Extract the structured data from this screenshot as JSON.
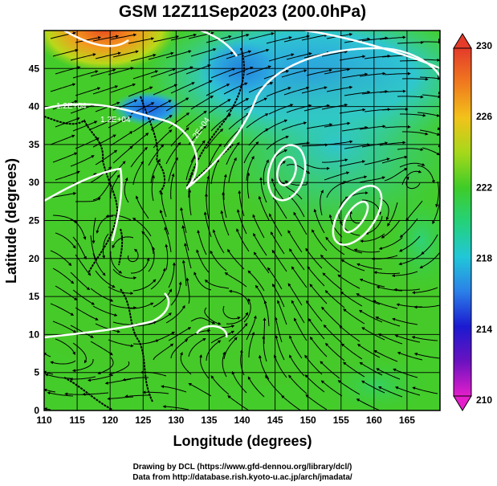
{
  "title": "GSM 12Z11Sep2023 (200.0hPa)",
  "xlabel": "Longitude (degrees)",
  "ylabel": "Latitude  (degrees)",
  "x_ticks": [
    "110",
    "115",
    "120",
    "125",
    "130",
    "135",
    "140",
    "145",
    "150",
    "155",
    "160",
    "165"
  ],
  "y_ticks": [
    "0",
    "5",
    "10",
    "15",
    "20",
    "25",
    "30",
    "35",
    "40",
    "45"
  ],
  "colorbar_ticks": [
    "210",
    "214",
    "218",
    "222",
    "226",
    "230"
  ],
  "contour_labels": [
    "1.2E+04",
    "1.2E+04",
    "1.2E+04"
  ],
  "credits": {
    "line1": "Drawing by DCL (https://www.gfd-dennou.org/library/dcl/)",
    "line2": "Data from http://database.rish.kyoto-u.ac.jp/arch/jmadata/"
  },
  "map": {
    "lon_range": [
      110,
      170
    ],
    "lat_range": [
      0,
      50
    ],
    "variable_range": [
      210,
      230
    ],
    "colors": {
      "high": "#e43b2b",
      "warm": "#f29a1e",
      "mid": "#3fcc28",
      "cool": "#21c7d8",
      "low": "#2b7fe8",
      "min": "#e41ecb"
    }
  }
}
